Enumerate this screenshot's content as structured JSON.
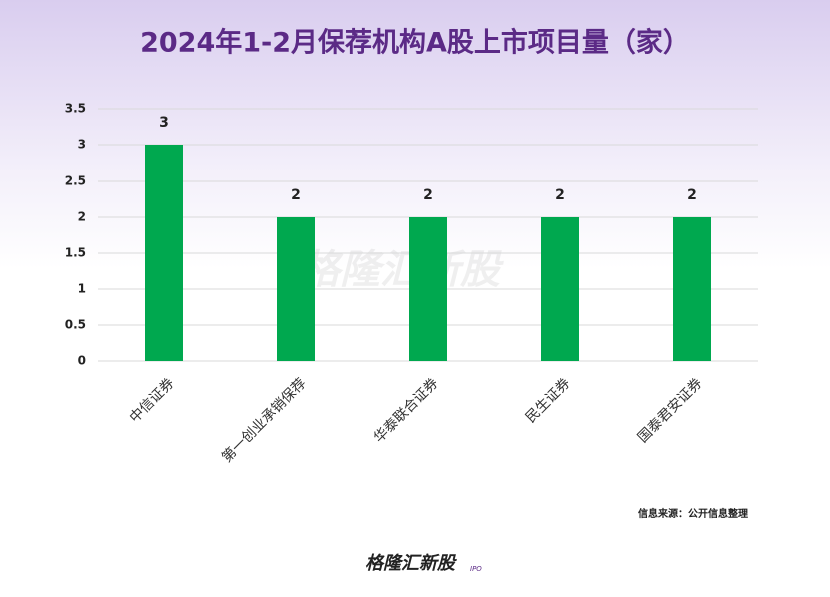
{
  "chart_data": {
    "type": "bar",
    "title": "2024年1-2月保荐机构A股上市项目量（家）",
    "categories": [
      "中信证券",
      "第一创业承销保荐",
      "华泰联合证券",
      "民生证券",
      "国泰君安证券"
    ],
    "values": [
      3,
      2,
      2,
      2,
      2
    ],
    "color": "#00a84f",
    "ylim": [
      0,
      3.5
    ],
    "yticks": [
      0,
      0.5,
      1,
      1.5,
      2,
      2.5,
      3,
      3.5
    ],
    "grid": true,
    "source": "信息来源：公开信息整理",
    "logo": "格隆汇新股",
    "logo_sub": "IPO"
  }
}
